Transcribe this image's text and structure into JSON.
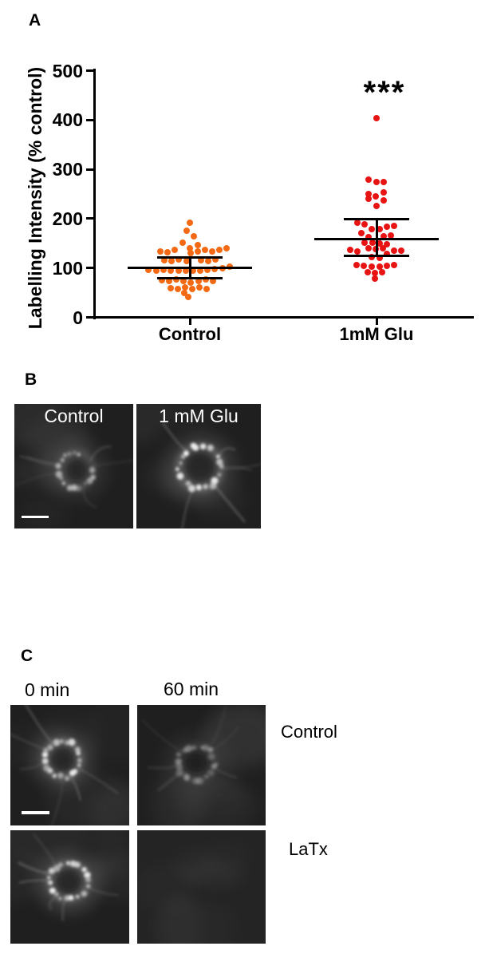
{
  "panel_a": {
    "label": "A"
  },
  "chart_data": {
    "type": "scatter",
    "title": "",
    "xlabel": "",
    "ylabel": "Labelling Intensity (% control)",
    "ylim": [
      0,
      500
    ],
    "yticks": [
      0,
      100,
      200,
      300,
      400,
      500
    ],
    "categories": [
      "Control",
      "1mM Glu"
    ],
    "grid": false,
    "legend": null,
    "significance": {
      "category": "1mM Glu",
      "text": "***",
      "y": 460
    },
    "series": [
      {
        "name": "Control",
        "color": "#f46a14",
        "mean": 100,
        "err_upper": 121,
        "err_lower": 79,
        "points": [
          [
            0,
            192
          ],
          [
            -4,
            176
          ],
          [
            5,
            165
          ],
          [
            -9,
            152
          ],
          [
            10,
            146
          ],
          [
            0,
            140
          ],
          [
            -37,
            134
          ],
          [
            -28,
            132
          ],
          [
            -19,
            136
          ],
          [
            1,
            130
          ],
          [
            10,
            134
          ],
          [
            19,
            136
          ],
          [
            28,
            133
          ],
          [
            37,
            136
          ],
          [
            46,
            140
          ],
          [
            -32,
            116
          ],
          [
            -23,
            114
          ],
          [
            -14,
            117
          ],
          [
            -4,
            114
          ],
          [
            14,
            116
          ],
          [
            23,
            114
          ],
          [
            32,
            117
          ],
          [
            -52,
            96
          ],
          [
            -42,
            95
          ],
          [
            -33,
            97
          ],
          [
            -24,
            95
          ],
          [
            -14,
            94
          ],
          [
            -5,
            95
          ],
          [
            4,
            94
          ],
          [
            13,
            95
          ],
          [
            22,
            96
          ],
          [
            31,
            98
          ],
          [
            41,
            100
          ],
          [
            50,
            102
          ],
          [
            -35,
            75
          ],
          [
            -26,
            73
          ],
          [
            -17,
            77
          ],
          [
            -8,
            73
          ],
          [
            1,
            71
          ],
          [
            11,
            74
          ],
          [
            20,
            77
          ],
          [
            29,
            74
          ],
          [
            -24,
            59
          ],
          [
            -15,
            57
          ],
          [
            -6,
            61
          ],
          [
            3,
            57
          ],
          [
            12,
            61
          ],
          [
            21,
            58
          ],
          [
            -7,
            50
          ],
          [
            -2,
            41
          ]
        ]
      },
      {
        "name": "1mM Glu",
        "color": "#e81313",
        "mean": 158,
        "err_upper": 199,
        "err_lower": 124,
        "points": [
          [
            0,
            404
          ],
          [
            -10,
            279
          ],
          [
            0,
            275
          ],
          [
            9,
            275
          ],
          [
            -10,
            250
          ],
          [
            9,
            254
          ],
          [
            -10,
            241
          ],
          [
            -1,
            245
          ],
          [
            9,
            237
          ],
          [
            0,
            225
          ],
          [
            -24,
            192
          ],
          [
            -15,
            188
          ],
          [
            -6,
            179
          ],
          [
            4,
            178
          ],
          [
            13,
            183
          ],
          [
            22,
            186
          ],
          [
            -19,
            170
          ],
          [
            -10,
            163
          ],
          [
            9,
            165
          ],
          [
            18,
            166
          ],
          [
            -15,
            152
          ],
          [
            -5,
            151
          ],
          [
            4,
            150
          ],
          [
            13,
            148
          ],
          [
            -10,
            140
          ],
          [
            -1,
            138
          ],
          [
            8,
            140
          ],
          [
            -33,
            136
          ],
          [
            -24,
            133
          ],
          [
            22,
            135
          ],
          [
            31,
            135
          ],
          [
            -6,
            122
          ],
          [
            4,
            120
          ],
          [
            13,
            128
          ],
          [
            -25,
            106
          ],
          [
            -16,
            104
          ],
          [
            -6,
            103
          ],
          [
            4,
            102
          ],
          [
            13,
            104
          ],
          [
            22,
            106
          ],
          [
            -11,
            91
          ],
          [
            -2,
            89
          ],
          [
            7,
            91
          ],
          [
            -2,
            79
          ]
        ]
      }
    ]
  },
  "panel_b": {
    "label": "B",
    "images": [
      {
        "label": "Control",
        "appearance": "ring-medium",
        "scale_bar": true
      },
      {
        "label": "1 mM Glu",
        "appearance": "ring-bright",
        "scale_bar": false
      }
    ]
  },
  "panel_c": {
    "label": "C",
    "col_headers": [
      "0 min",
      "60 min"
    ],
    "row_labels": [
      "Control",
      "LaTx"
    ],
    "images": [
      {
        "row": "Control",
        "col": "0 min",
        "appearance": "ring-bright",
        "scale_bar": true
      },
      {
        "row": "Control",
        "col": "60 min",
        "appearance": "ring-dim",
        "scale_bar": false
      },
      {
        "row": "LaTx",
        "col": "0 min",
        "appearance": "ring-bright",
        "scale_bar": false
      },
      {
        "row": "LaTx",
        "col": "60 min",
        "appearance": "blank",
        "scale_bar": false
      }
    ]
  },
  "colors": {
    "control_dots": "#f46a14",
    "glu_dots": "#e81313",
    "axis": "#000000",
    "micrograph_background": "#1f1f1f",
    "scale_bar": "#ffffff",
    "image_label_text": "#ffffff"
  }
}
